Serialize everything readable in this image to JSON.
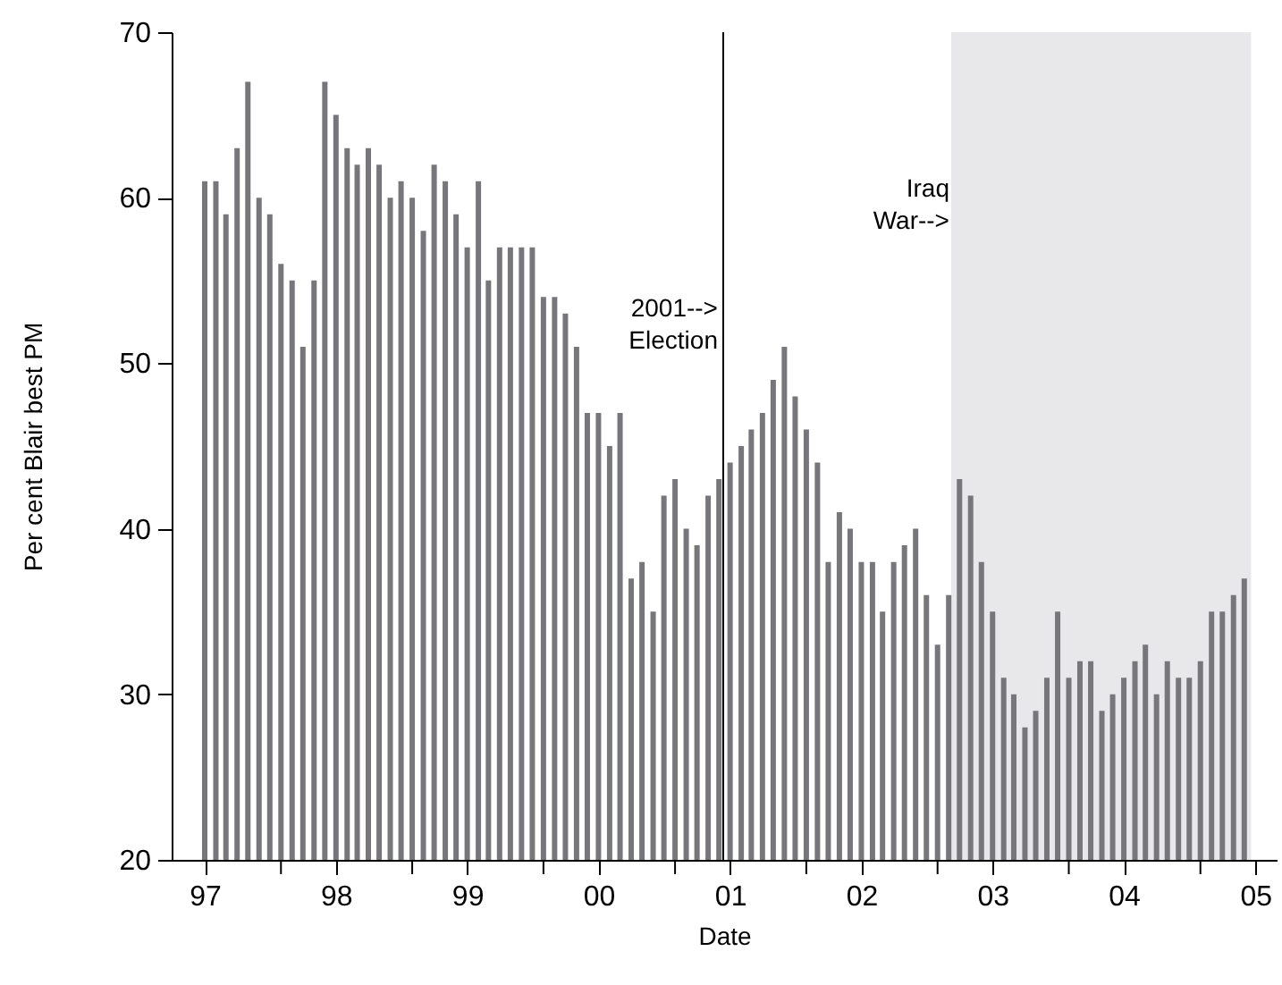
{
  "chart_data": {
    "type": "bar",
    "xlabel": "Date",
    "ylabel": "Per cent Blair best PM",
    "x": [
      "1997-01",
      "1997-02",
      "1997-03",
      "1997-04",
      "1997-05",
      "1997-06",
      "1997-07",
      "1997-08",
      "1997-09",
      "1997-10",
      "1997-11",
      "1997-12",
      "1998-01",
      "1998-02",
      "1998-03",
      "1998-04",
      "1998-05",
      "1998-06",
      "1998-07",
      "1998-08",
      "1998-09",
      "1998-10",
      "1998-11",
      "1998-12",
      "1999-01",
      "1999-02",
      "1999-03",
      "1999-04",
      "1999-05",
      "1999-06",
      "1999-07",
      "1999-08",
      "1999-09",
      "1999-10",
      "1999-11",
      "1999-12",
      "2000-01",
      "2000-02",
      "2000-03",
      "2000-04",
      "2000-05",
      "2000-06",
      "2000-07",
      "2000-08",
      "2000-09",
      "2000-10",
      "2000-11",
      "2000-12",
      "2001-01",
      "2001-02",
      "2001-03",
      "2001-04",
      "2001-05",
      "2001-06",
      "2001-07",
      "2001-08",
      "2001-09",
      "2001-10",
      "2001-11",
      "2001-12",
      "2002-01",
      "2002-02",
      "2002-03",
      "2002-04",
      "2002-05",
      "2002-06",
      "2002-07",
      "2002-08",
      "2002-09",
      "2002-10",
      "2002-11",
      "2002-12",
      "2003-01",
      "2003-02",
      "2003-03",
      "2003-04",
      "2003-05",
      "2003-06",
      "2003-07",
      "2003-08",
      "2003-09",
      "2003-10",
      "2003-11",
      "2003-12",
      "2004-01",
      "2004-02",
      "2004-03",
      "2004-04",
      "2004-05",
      "2004-06",
      "2004-07",
      "2004-08",
      "2004-09",
      "2004-10",
      "2004-11",
      "2004-12"
    ],
    "values": [
      61,
      61,
      59,
      63,
      67,
      60,
      59,
      56,
      55,
      51,
      55,
      67,
      65,
      63,
      62,
      63,
      62,
      60,
      61,
      60,
      58,
      62,
      61,
      59,
      57,
      61,
      55,
      57,
      57,
      57,
      57,
      54,
      54,
      53,
      51,
      47,
      47,
      45,
      47,
      37,
      38,
      35,
      42,
      43,
      40,
      39,
      42,
      43,
      44,
      45,
      46,
      47,
      49,
      51,
      48,
      46,
      44,
      38,
      41,
      40,
      38,
      38,
      35,
      38,
      39,
      40,
      36,
      33,
      36,
      43,
      42,
      38,
      35,
      31,
      30,
      28,
      29,
      31,
      35,
      31,
      32,
      32,
      29,
      30,
      31,
      32,
      33,
      30,
      32,
      31,
      31,
      32,
      35,
      35,
      36,
      37
    ],
    "color": "#77777b",
    "xlim": [
      "1996-10",
      "2005-03"
    ],
    "xticks": [
      {
        "value": "1997-01",
        "label": "97"
      },
      {
        "value": "1997-08",
        "label": null
      },
      {
        "value": "1998-01",
        "label": "98"
      },
      {
        "value": "1998-08",
        "label": null
      },
      {
        "value": "1999-01",
        "label": "99"
      },
      {
        "value": "1999-08",
        "label": null
      },
      {
        "value": "2000-01",
        "label": "00"
      },
      {
        "value": "2000-08",
        "label": null
      },
      {
        "value": "2001-01",
        "label": "01"
      },
      {
        "value": "2001-08",
        "label": null
      },
      {
        "value": "2002-01",
        "label": "02"
      },
      {
        "value": "2002-08",
        "label": null
      },
      {
        "value": "2003-01",
        "label": "03"
      },
      {
        "value": "2003-08",
        "label": null
      },
      {
        "value": "2004-01",
        "label": "04"
      },
      {
        "value": "2004-08",
        "label": null
      },
      {
        "value": "2005-01",
        "label": "05"
      }
    ],
    "ylim": [
      20,
      70
    ],
    "yticks": [
      20,
      30,
      40,
      50,
      60,
      70
    ],
    "ref_lines": [
      {
        "axis": "x",
        "value": "2000-12-13",
        "label": "2001--> Election",
        "color": "#000000"
      }
    ],
    "bands": [
      {
        "axis": "x",
        "from": "2002-09-08",
        "to": "2004-12-20",
        "label": "Iraq War-->",
        "color": "#e8e8ea"
      }
    ],
    "grid": false
  }
}
